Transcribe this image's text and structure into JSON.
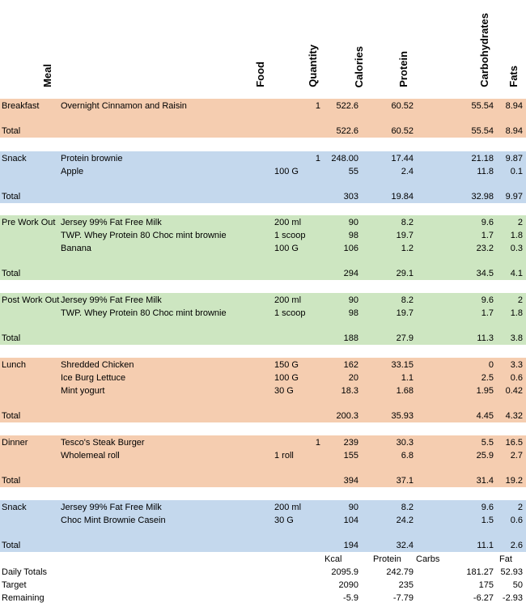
{
  "headers": {
    "meal": "Meal",
    "food": "Food",
    "quantity": "Quantity",
    "calories": "Calories",
    "protein": "Protein",
    "carbohydrates": "Carbohydrates",
    "fats": "Fats"
  },
  "sections": [
    {
      "meal": "Breakfast",
      "color": "#f5cdb0",
      "items": [
        {
          "food": "Overnight Cinnamon and Raisin",
          "quantity": "",
          "count": "1",
          "calories": "522.6",
          "protein": "60.52",
          "carbs": "55.54",
          "fats": "8.94"
        }
      ],
      "total": {
        "label": "Total",
        "calories": "522.6",
        "protein": "60.52",
        "carbs": "55.54",
        "fats": "8.94"
      }
    },
    {
      "meal": "Snack",
      "color": "#c4d8ed",
      "items": [
        {
          "food": "Protein brownie",
          "quantity": "",
          "count": "1",
          "calories": "248.00",
          "protein": "17.44",
          "carbs": "21.18",
          "fats": "9.87"
        },
        {
          "food": "Apple",
          "quantity": "100 G",
          "count": "",
          "calories": "55",
          "protein": "2.4",
          "carbs": "11.8",
          "fats": "0.1"
        }
      ],
      "total": {
        "label": "Total",
        "calories": "303",
        "protein": "19.84",
        "carbs": "32.98",
        "fats": "9.97"
      }
    },
    {
      "meal": "Pre Work Out",
      "color": "#cde6c1",
      "items": [
        {
          "food": "Jersey 99% Fat Free Milk",
          "quantity": "200 ml",
          "count": "",
          "calories": "90",
          "protein": "8.2",
          "carbs": "9.6",
          "fats": "2"
        },
        {
          "food": "TWP. Whey Protein 80 Choc mint brownie",
          "quantity": "1 scoop",
          "count": "",
          "calories": "98",
          "protein": "19.7",
          "carbs": "1.7",
          "fats": "1.8"
        },
        {
          "food": "Banana",
          "quantity": "100 G",
          "count": "",
          "calories": "106",
          "protein": "1.2",
          "carbs": "23.2",
          "fats": "0.3"
        }
      ],
      "total": {
        "label": "Total",
        "calories": "294",
        "protein": "29.1",
        "carbs": "34.5",
        "fats": "4.1"
      }
    },
    {
      "meal": "Post Work Out",
      "color": "#cde6c1",
      "items": [
        {
          "food": "Jersey 99% Fat Free Milk",
          "quantity": "200 ml",
          "count": "",
          "calories": "90",
          "protein": "8.2",
          "carbs": "9.6",
          "fats": "2"
        },
        {
          "food": "TWP. Whey Protein 80 Choc mint brownie",
          "quantity": "1 scoop",
          "count": "",
          "calories": "98",
          "protein": "19.7",
          "carbs": "1.7",
          "fats": "1.8"
        }
      ],
      "total": {
        "label": "Total",
        "calories": "188",
        "protein": "27.9",
        "carbs": "11.3",
        "fats": "3.8"
      }
    },
    {
      "meal": "Lunch",
      "color": "#f5cdb0",
      "items": [
        {
          "food": "Shredded Chicken",
          "quantity": "150 G",
          "count": "",
          "calories": "162",
          "protein": "33.15",
          "carbs": "0",
          "fats": "3.3"
        },
        {
          "food": "Ice Burg Lettuce",
          "quantity": "100 G",
          "count": "",
          "calories": "20",
          "protein": "1.1",
          "carbs": "2.5",
          "fats": "0.6"
        },
        {
          "food": "Mint yogurt",
          "quantity": "30 G",
          "count": "",
          "calories": "18.3",
          "protein": "1.68",
          "carbs": "1.95",
          "fats": "0.42"
        }
      ],
      "total": {
        "label": "Total",
        "calories": "200.3",
        "protein": "35.93",
        "carbs": "4.45",
        "fats": "4.32"
      }
    },
    {
      "meal": "Dinner",
      "color": "#f5cdb0",
      "items": [
        {
          "food": "Tesco's Steak Burger",
          "quantity": "",
          "count": "1",
          "calories": "239",
          "protein": "30.3",
          "carbs": "5.5",
          "fats": "16.5"
        },
        {
          "food": "Wholemeal roll",
          "quantity": "1 roll",
          "count": "",
          "calories": "155",
          "protein": "6.8",
          "carbs": "25.9",
          "fats": "2.7"
        }
      ],
      "total": {
        "label": "Total",
        "calories": "394",
        "protein": "37.1",
        "carbs": "31.4",
        "fats": "19.2"
      }
    },
    {
      "meal": "Snack",
      "color": "#c4d8ed",
      "items": [
        {
          "food": "Jersey 99% Fat Free Milk",
          "quantity": "200 ml",
          "count": "",
          "calories": "90",
          "protein": "8.2",
          "carbs": "9.6",
          "fats": "2"
        },
        {
          "food": "Choc Mint Brownie Casein",
          "quantity": "30 G",
          "count": "",
          "calories": "104",
          "protein": "24.2",
          "carbs": "1.5",
          "fats": "0.6"
        }
      ],
      "total": {
        "label": "Total",
        "calories": "194",
        "protein": "32.4",
        "carbs": "11.1",
        "fats": "2.6"
      }
    }
  ],
  "summary": {
    "headers": {
      "kcal": "Kcal",
      "protein": "Protein",
      "carbs": "Carbs",
      "fat": "Fat"
    },
    "rows": [
      {
        "label": "Daily Totals",
        "calories": "2095.9",
        "protein": "242.79",
        "carbs": "181.27",
        "fats": "52.93"
      },
      {
        "label": "Target",
        "calories": "2090",
        "protein": "235",
        "carbs": "175",
        "fats": "50"
      },
      {
        "label": "Remaining",
        "calories": "-5.9",
        "protein": "-7.79",
        "carbs": "-6.27",
        "fats": "-2.93"
      }
    ]
  }
}
